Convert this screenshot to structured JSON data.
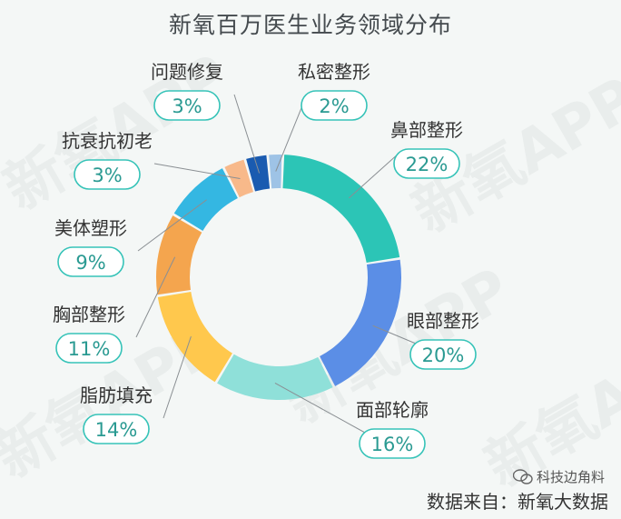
{
  "chart_data": {
    "type": "pie",
    "title": "新氧百万医生业务领域分布",
    "slices": [
      {
        "label": "鼻部整形",
        "value": 22,
        "pct_text": "22%",
        "color": "#2cc5b6"
      },
      {
        "label": "眼部整形",
        "value": 20,
        "pct_text": "20%",
        "color": "#5b8ee6"
      },
      {
        "label": "面部轮廓",
        "value": 16,
        "pct_text": "16%",
        "color": "#8fe0d9"
      },
      {
        "label": "脂肪填充",
        "value": 14,
        "pct_text": "14%",
        "color": "#ffc84d"
      },
      {
        "label": "胸部整形",
        "value": 11,
        "pct_text": "11%",
        "color": "#f4a54e"
      },
      {
        "label": "美体塑形",
        "value": 9,
        "pct_text": "9%",
        "color": "#34b7e2"
      },
      {
        "label": "抗衰抗初老",
        "value": 3,
        "pct_text": "3%",
        "color": "#f8b98a"
      },
      {
        "label": "问题修复",
        "value": 3,
        "pct_text": "3%",
        "color": "#1a5bb0"
      },
      {
        "label": "私密整形",
        "value": 2,
        "pct_text": "2%",
        "color": "#9ec3e6"
      }
    ]
  },
  "watermark": "新氧APP",
  "footer": {
    "source": "数据来自：新氧大数据",
    "wechat_account": "科技边角料"
  },
  "colors": {
    "badge_border": "#36c3b8",
    "badge_text": "#2a9a92",
    "label_text": "#333333"
  }
}
